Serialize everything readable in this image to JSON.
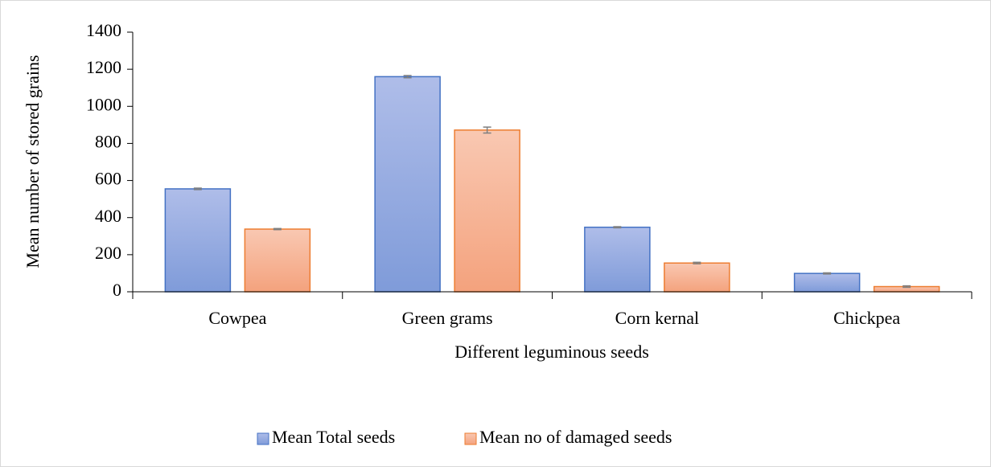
{
  "chart_data": {
    "type": "bar",
    "x_label": "Different leguminous seeds",
    "y_label": "Mean number of stored grains",
    "categories": [
      "Cowpea",
      "Green grams",
      "Corn kernal",
      "Chickpea"
    ],
    "series": [
      {
        "name": "Mean Total seeds",
        "color": "#8fa6df",
        "values": [
          555,
          1160,
          348,
          99
        ],
        "errors": [
          4,
          6,
          3,
          3
        ]
      },
      {
        "name": "Mean no of damaged seeds",
        "color": "#f6b394",
        "values": [
          338,
          872,
          155,
          28
        ],
        "errors": [
          3,
          16,
          4,
          4
        ]
      }
    ],
    "ylim": [
      0,
      1400
    ],
    "yticks": [
      0,
      200,
      400,
      600,
      800,
      1000,
      1200,
      1400
    ],
    "legend": "bottom"
  }
}
